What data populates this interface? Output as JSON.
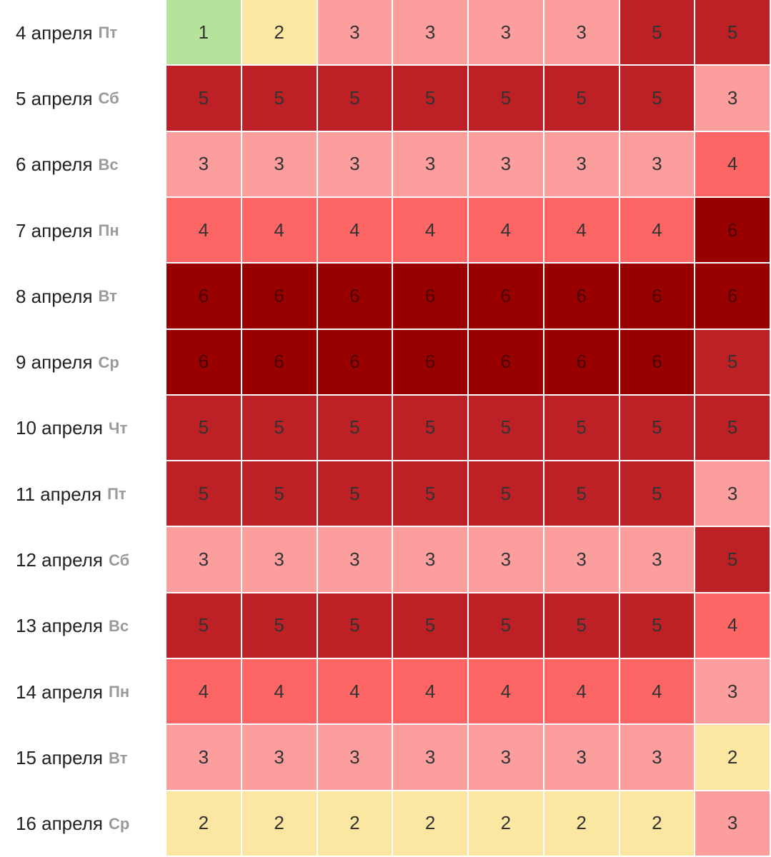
{
  "colors": {
    "1": "#b6e39b",
    "2": "#fbe7a1",
    "3": "#fd9e9e",
    "4": "#fe6666",
    "5": "#bd2025",
    "6": "#990000"
  },
  "rows": [
    {
      "date": "4 апреля",
      "weekday": "Пт",
      "values": [
        1,
        2,
        3,
        3,
        3,
        3,
        5,
        5
      ]
    },
    {
      "date": "5 апреля",
      "weekday": "Сб",
      "values": [
        5,
        5,
        5,
        5,
        5,
        5,
        5,
        3
      ]
    },
    {
      "date": "6 апреля",
      "weekday": "Вс",
      "values": [
        3,
        3,
        3,
        3,
        3,
        3,
        3,
        4
      ]
    },
    {
      "date": "7 апреля",
      "weekday": "Пн",
      "values": [
        4,
        4,
        4,
        4,
        4,
        4,
        4,
        6
      ]
    },
    {
      "date": "8 апреля",
      "weekday": "Вт",
      "values": [
        6,
        6,
        6,
        6,
        6,
        6,
        6,
        6
      ]
    },
    {
      "date": "9 апреля",
      "weekday": "Ср",
      "values": [
        6,
        6,
        6,
        6,
        6,
        6,
        6,
        5
      ]
    },
    {
      "date": "10 апреля",
      "weekday": "Чт",
      "values": [
        5,
        5,
        5,
        5,
        5,
        5,
        5,
        5
      ]
    },
    {
      "date": "11 апреля",
      "weekday": "Пт",
      "values": [
        5,
        5,
        5,
        5,
        5,
        5,
        5,
        3
      ]
    },
    {
      "date": "12 апреля",
      "weekday": "Сб",
      "values": [
        3,
        3,
        3,
        3,
        3,
        3,
        3,
        5
      ]
    },
    {
      "date": "13 апреля",
      "weekday": "Вс",
      "values": [
        5,
        5,
        5,
        5,
        5,
        5,
        5,
        4
      ]
    },
    {
      "date": "14 апреля",
      "weekday": "Пн",
      "values": [
        4,
        4,
        4,
        4,
        4,
        4,
        4,
        3
      ]
    },
    {
      "date": "15 апреля",
      "weekday": "Вт",
      "values": [
        3,
        3,
        3,
        3,
        3,
        3,
        3,
        2
      ]
    },
    {
      "date": "16 апреля",
      "weekday": "Ср",
      "values": [
        2,
        2,
        2,
        2,
        2,
        2,
        2,
        3
      ]
    }
  ]
}
